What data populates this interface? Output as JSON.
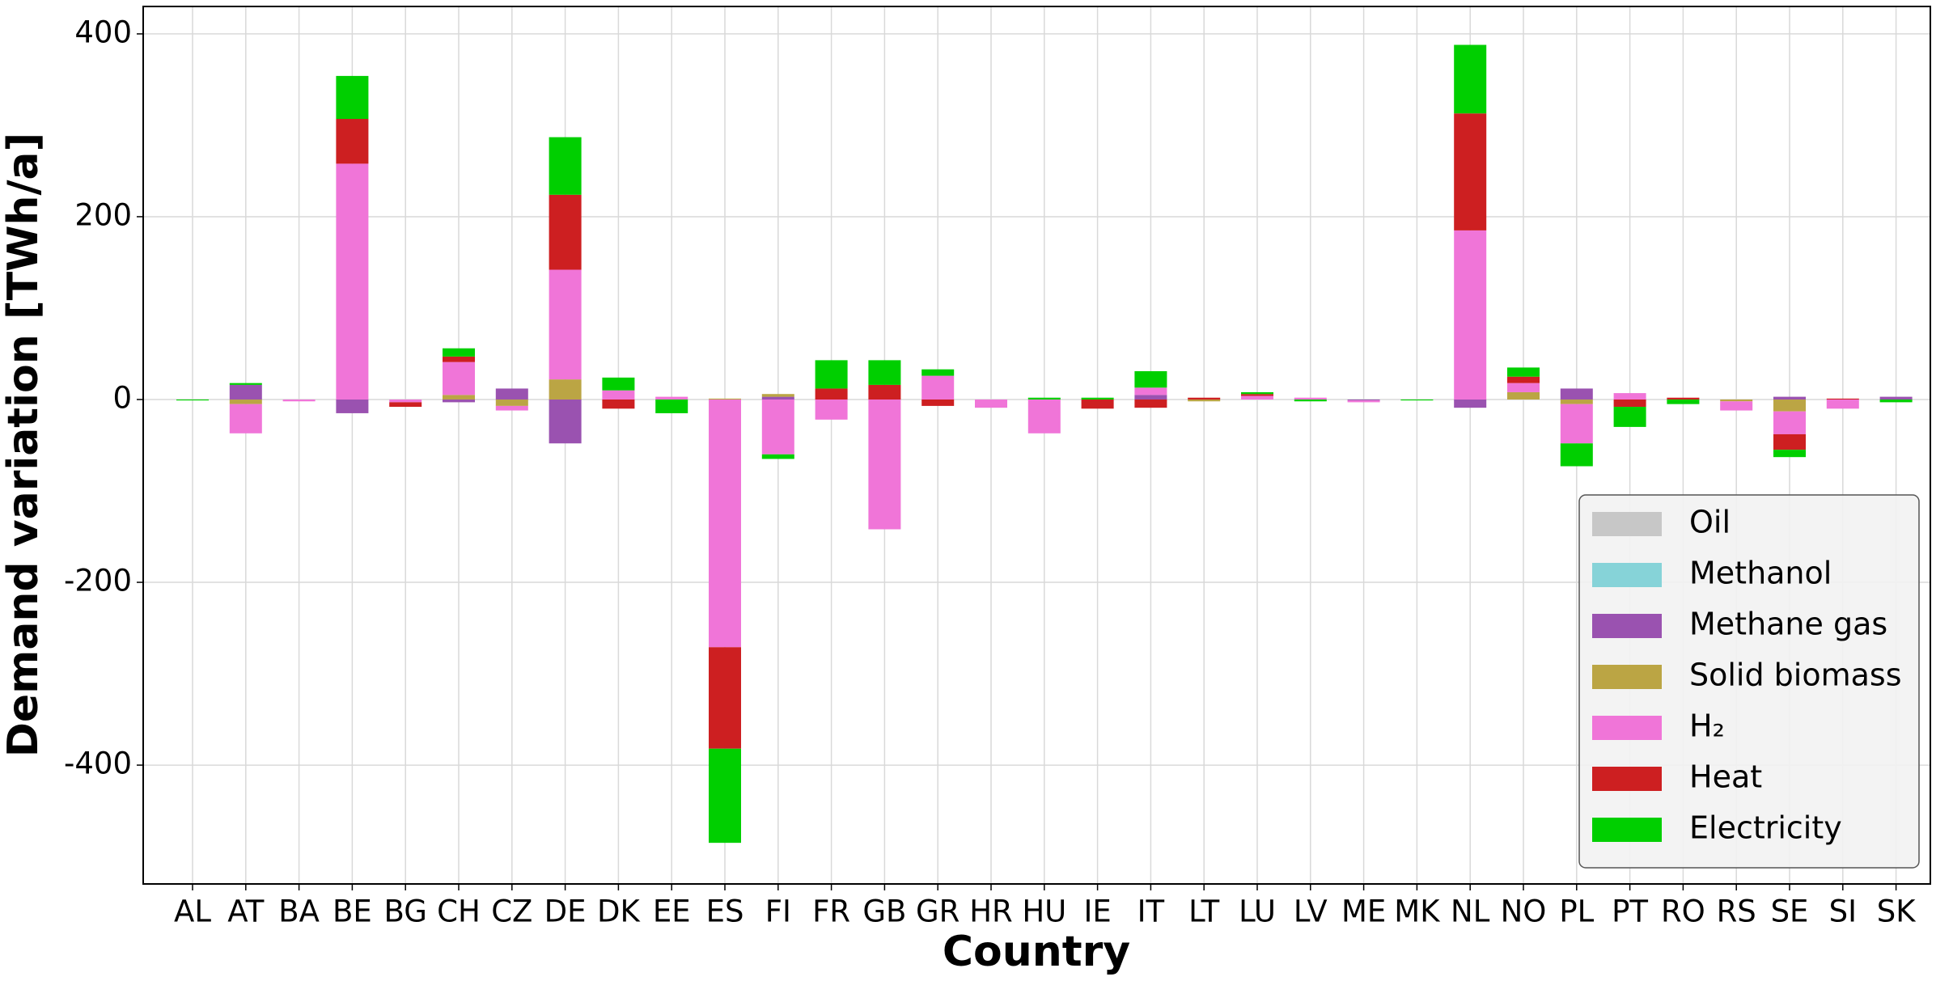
{
  "chart_data": {
    "type": "stacked_bar",
    "xlabel": "Country",
    "ylabel": "Demand variation [TWh/a]",
    "categories": [
      "AL",
      "AT",
      "BA",
      "BE",
      "BG",
      "CH",
      "CZ",
      "DE",
      "DK",
      "EE",
      "ES",
      "FI",
      "FR",
      "GB",
      "GR",
      "HR",
      "HU",
      "IE",
      "IT",
      "LT",
      "LU",
      "LV",
      "ME",
      "MK",
      "NL",
      "NO",
      "PL",
      "PT",
      "RO",
      "RS",
      "SE",
      "SI",
      "SK"
    ],
    "series": [
      {
        "name": "Oil",
        "color": "#c7c7c7",
        "values": [
          0,
          0,
          0,
          0,
          0,
          0,
          0,
          0,
          0,
          0,
          0,
          0,
          0,
          0,
          0,
          0,
          0,
          0,
          0,
          0,
          0,
          0,
          0,
          0,
          0,
          0,
          0,
          0,
          0,
          0,
          0,
          0,
          0
        ]
      },
      {
        "name": "Methanol",
        "color": "#86d3d8",
        "values": [
          0,
          0,
          0,
          0,
          0,
          0,
          0,
          0,
          0,
          0,
          0,
          0,
          0,
          0,
          0,
          0,
          0,
          0,
          0,
          0,
          0,
          0,
          0,
          0,
          0,
          0,
          0,
          0,
          0,
          0,
          0,
          0,
          0
        ]
      },
      {
        "name": "Methane gas",
        "color": "#9a52b0",
        "values": [
          0,
          16,
          0,
          -15,
          0,
          -3,
          12,
          -48,
          0,
          0,
          0,
          3,
          0,
          0,
          0,
          0,
          0,
          0,
          5,
          0,
          0,
          0,
          -1,
          0,
          -9,
          0,
          12,
          0,
          0,
          0,
          3,
          0,
          3
        ]
      },
      {
        "name": "Solid biomass",
        "color": "#bba544",
        "values": [
          0,
          -5,
          0,
          0,
          0,
          5,
          -7,
          22,
          0,
          0,
          1,
          3,
          0,
          0,
          0,
          0,
          0,
          0,
          0,
          -2,
          0,
          0,
          0,
          0,
          0,
          8,
          -5,
          0,
          0,
          -2,
          -13,
          0,
          0
        ]
      },
      {
        "name": "H₂",
        "color": "#f075d8",
        "values": [
          0,
          -32,
          -2,
          258,
          -3,
          36,
          -5,
          120,
          10,
          3,
          -271,
          -60,
          -22,
          -142,
          26,
          -9,
          -37,
          0,
          8,
          0,
          4,
          2,
          -2,
          0,
          185,
          10,
          -43,
          7,
          0,
          -10,
          -25,
          -10,
          0
        ]
      },
      {
        "name": "Heat",
        "color": "#cd1f21",
        "values": [
          0,
          0,
          0,
          49,
          -5,
          6,
          0,
          82,
          -10,
          0,
          -111,
          0,
          12,
          16,
          -7,
          0,
          0,
          -10,
          -9,
          2,
          2,
          0,
          0,
          0,
          128,
          7,
          0,
          -8,
          2,
          0,
          -17,
          1,
          0
        ]
      },
      {
        "name": "Electricity",
        "color": "#00cf00",
        "values": [
          -1,
          2,
          0,
          47,
          0,
          9,
          0,
          63,
          14,
          -15,
          -103,
          -5,
          31,
          27,
          7,
          0,
          2,
          2,
          18,
          0,
          2,
          -2,
          0,
          -1,
          75,
          10,
          -25,
          -22,
          -5,
          0,
          -8,
          0,
          -3
        ]
      }
    ],
    "ylim": [
      -530,
      430
    ],
    "yticks": [
      -400,
      -200,
      0,
      200,
      400
    ],
    "grid": true,
    "legend": "lower right"
  }
}
